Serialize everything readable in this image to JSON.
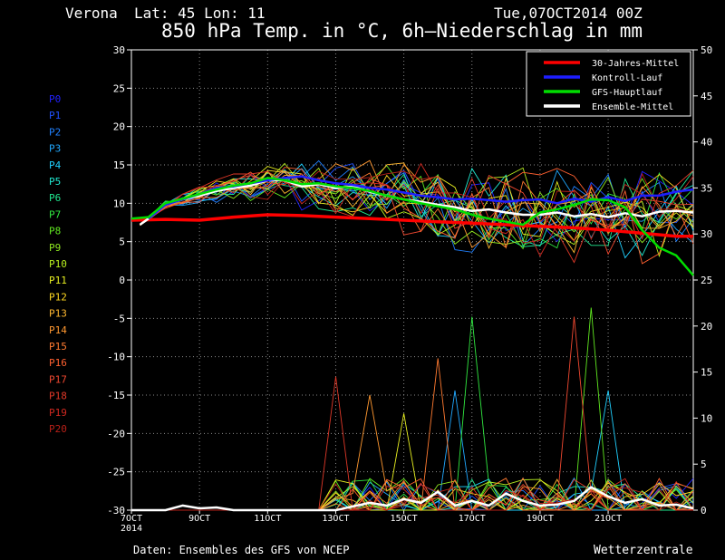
{
  "header": {
    "location": "Verona",
    "coords": "Lat: 45 Lon: 11",
    "run": "Tue,07OCT2014 00Z",
    "title": "850 hPa Temp. in °C, 6h—Niederschlag in mm"
  },
  "footer": {
    "source": "Daten: Ensembles des GFS von NCEP",
    "brand": "Wetterzentrale"
  },
  "colors": {
    "background": "#000000",
    "climate": "#ff0000",
    "control": "#1e1eff",
    "gfs": "#00dd00",
    "mean": "#ffffff",
    "grid": "#8a8a8a"
  },
  "chart_data": {
    "type": "line",
    "title": "850 hPa Temp. in °C, 6h—Niederschlag in mm",
    "x_unit": "days since 07OCT2014 00Z",
    "x_range": [
      0,
      16.5
    ],
    "x_ticks": [
      {
        "x": 0,
        "label": "7OCT",
        "sub": "2014"
      },
      {
        "x": 2,
        "label": "9OCT"
      },
      {
        "x": 4,
        "label": "11OCT"
      },
      {
        "x": 6,
        "label": "13OCT"
      },
      {
        "x": 8,
        "label": "15OCT"
      },
      {
        "x": 10,
        "label": "17OCT"
      },
      {
        "x": 12,
        "label": "19OCT"
      },
      {
        "x": 14,
        "label": "21OCT"
      }
    ],
    "y_left": {
      "label": "°C",
      "range": [
        -30,
        30
      ],
      "ticks": [
        30,
        25,
        20,
        15,
        10,
        5,
        0,
        -5,
        -10,
        -15,
        -20,
        -25,
        -30
      ]
    },
    "y_right": {
      "label": "mm",
      "range": [
        0,
        50
      ],
      "ticks": [
        50,
        45,
        40,
        35,
        30,
        25,
        20,
        15,
        10,
        5,
        0
      ]
    },
    "grid": true,
    "legend_position": "top-right",
    "legend": [
      {
        "name": "30-Jahres-Mittel",
        "color": "#ff0000"
      },
      {
        "name": "Kontroll-Lauf",
        "color": "#1e1eff"
      },
      {
        "name": "GFS-Hauptlauf",
        "color": "#00dd00"
      },
      {
        "name": "Ensemble-Mittel",
        "color": "#ffffff"
      }
    ],
    "members": [
      {
        "name": "P0",
        "color": "#2020ff"
      },
      {
        "name": "P1",
        "color": "#2050ff"
      },
      {
        "name": "P2",
        "color": "#2080ff"
      },
      {
        "name": "P3",
        "color": "#20a8ff"
      },
      {
        "name": "P4",
        "color": "#20d0ff"
      },
      {
        "name": "P5",
        "color": "#20e8d0"
      },
      {
        "name": "P6",
        "color": "#20e890"
      },
      {
        "name": "P7",
        "color": "#30e840"
      },
      {
        "name": "P8",
        "color": "#60e820"
      },
      {
        "name": "P9",
        "color": "#90e820"
      },
      {
        "name": "P10",
        "color": "#b8f020"
      },
      {
        "name": "P11",
        "color": "#e8f020"
      },
      {
        "name": "P12",
        "color": "#ffd820"
      },
      {
        "name": "P13",
        "color": "#ffb830"
      },
      {
        "name": "P14",
        "color": "#ff9830"
      },
      {
        "name": "P15",
        "color": "#ff7a30"
      },
      {
        "name": "P16",
        "color": "#ff6030"
      },
      {
        "name": "P17",
        "color": "#f04830"
      },
      {
        "name": "P18",
        "color": "#e03828"
      },
      {
        "name": "P19",
        "color": "#d02820"
      },
      {
        "name": "P20",
        "color": "#b82018"
      }
    ],
    "series": [
      {
        "name": "30-Jahres-Mittel",
        "axis": "left",
        "color": "#ff0000",
        "x": [
          0,
          1,
          2,
          3,
          4,
          5,
          6,
          7,
          8,
          9,
          10,
          11,
          12,
          13,
          14,
          15,
          16,
          16.5
        ],
        "y": [
          7.8,
          7.9,
          7.8,
          8.2,
          8.5,
          8.4,
          8.2,
          8.0,
          7.8,
          7.6,
          7.4,
          7.2,
          7.0,
          6.8,
          6.5,
          6.1,
          5.7,
          5.7
        ]
      },
      {
        "name": "Ensemble-Mittel",
        "axis": "left",
        "color": "#ffffff",
        "x": [
          0.25,
          0.5,
          1,
          1.5,
          2,
          2.5,
          3,
          3.5,
          4,
          4.5,
          5,
          5.5,
          6,
          6.5,
          7,
          7.5,
          8,
          8.5,
          9,
          9.5,
          10,
          10.5,
          11,
          11.5,
          12,
          12.5,
          13,
          13.5,
          14,
          14.5,
          15,
          15.5,
          16,
          16.5
        ],
        "y": [
          7.2,
          8.0,
          9.8,
          10.5,
          11.0,
          11.6,
          12.0,
          12.3,
          13.0,
          13.0,
          12.2,
          12.5,
          12.0,
          12.2,
          11.5,
          11.0,
          10.5,
          10.2,
          9.8,
          9.5,
          9.0,
          9.2,
          8.8,
          8.5,
          8.5,
          8.8,
          8.3,
          8.6,
          8.2,
          8.7,
          8.3,
          8.9,
          9.0,
          8.8
        ]
      },
      {
        "name": "Kontroll-Lauf",
        "axis": "left",
        "color": "#1e1eff",
        "x": [
          0.5,
          1,
          1.5,
          2,
          2.5,
          3,
          3.5,
          4,
          4.5,
          5,
          5.5,
          6,
          6.5,
          7,
          7.5,
          8,
          8.5,
          9,
          9.5,
          10,
          10.5,
          11,
          11.5,
          12,
          12.5,
          13,
          13.5,
          14,
          14.5,
          15,
          15.5,
          16,
          16.5
        ],
        "y": [
          8.0,
          9.8,
          10.5,
          11.2,
          12.0,
          12.2,
          12.6,
          13.0,
          13.3,
          13.5,
          13.0,
          12.6,
          12.4,
          12.0,
          11.8,
          11.4,
          11.0,
          10.8,
          10.5,
          10.6,
          10.4,
          10.2,
          10.4,
          10.5,
          10.0,
          10.6,
          10.2,
          10.8,
          10.3,
          11.0,
          11.0,
          11.5,
          11.8
        ]
      },
      {
        "name": "GFS-Hauptlauf",
        "axis": "left",
        "color": "#00dd00",
        "x": [
          0,
          0.5,
          1,
          1.5,
          2,
          2.5,
          3,
          3.5,
          4,
          4.5,
          5,
          5.5,
          6,
          6.5,
          7,
          7.5,
          8,
          8.5,
          9,
          9.5,
          10,
          10.5,
          11,
          11.5,
          12,
          12.5,
          13,
          13.5,
          14,
          14.5,
          15,
          15.5,
          16,
          16.5
        ],
        "y": [
          8.0,
          8.2,
          10.0,
          10.6,
          11.2,
          11.8,
          12.3,
          12.6,
          13.3,
          13.0,
          12.5,
          12.6,
          12.2,
          12.0,
          11.6,
          11.0,
          10.5,
          10.0,
          9.6,
          9.2,
          8.5,
          8.0,
          7.6,
          7.2,
          8.8,
          9.2,
          9.8,
          10.5,
          10.4,
          9.5,
          6.5,
          4.2,
          3.2,
          0.6
        ]
      },
      {
        "name": "Niederschlag Ensemble-Mittel",
        "axis": "right",
        "color": "#ffffff",
        "x": [
          0,
          1,
          1.5,
          2,
          2.5,
          3,
          4,
          5,
          6,
          6.5,
          7,
          7.5,
          8,
          8.5,
          9,
          9.5,
          10,
          10.5,
          11,
          11.5,
          12,
          12.5,
          13,
          13.5,
          14,
          14.5,
          15,
          15.5,
          16,
          16.5
        ],
        "y": [
          0,
          0,
          0.5,
          0.2,
          0.3,
          0,
          0,
          0,
          0,
          0.4,
          0.8,
          0.5,
          1.2,
          0.8,
          2.0,
          0.5,
          1.0,
          0.5,
          1.8,
          1.0,
          0.5,
          0.6,
          1.0,
          2.5,
          1.5,
          0.8,
          1.2,
          0.5,
          0.6,
          0.2
        ]
      }
    ],
    "precip_peaks_mm": [
      {
        "x": 6.2,
        "mm": 14.5,
        "member": "P18"
      },
      {
        "x": 7.2,
        "mm": 12.5,
        "member": "P14"
      },
      {
        "x": 8.0,
        "mm": 10.5,
        "member": "P11"
      },
      {
        "x": 8.8,
        "mm": 16.5,
        "member": "P15"
      },
      {
        "x": 9.8,
        "mm": 21.0,
        "member": "P7"
      },
      {
        "x": 9.4,
        "mm": 13.0,
        "member": "P3"
      },
      {
        "x": 13.1,
        "mm": 21.0,
        "member": "P17"
      },
      {
        "x": 13.4,
        "mm": 22.0,
        "member": "P8"
      },
      {
        "x": 14.2,
        "mm": 13.0,
        "member": "P4"
      }
    ]
  }
}
